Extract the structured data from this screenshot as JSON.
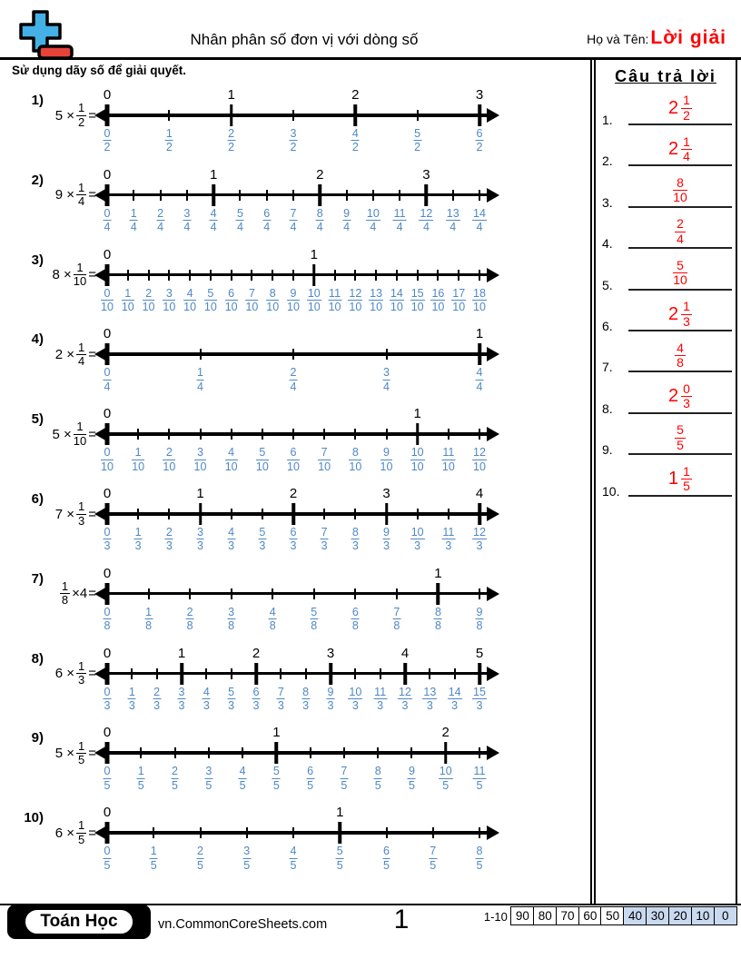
{
  "header": {
    "title": "Nhân phân số đơn vị với dòng số",
    "name_label": "Họ và Tên:",
    "name_value": "Lời giải",
    "instruction": "Sử dụng dãy số để giải quyết."
  },
  "colors": {
    "answer_red": "#fe0000",
    "fraction_blue": "#4e88c7",
    "logo_blue": "#45b0e5",
    "logo_red": "#e84339",
    "grade_highlight": "#c9daf0"
  },
  "problems": [
    {
      "label": "1)",
      "coef": "5",
      "num": "1",
      "den": 2,
      "frac_first": false,
      "max": 6
    },
    {
      "label": "2)",
      "coef": "9",
      "num": "1",
      "den": 4,
      "frac_first": false,
      "max": 14
    },
    {
      "label": "3)",
      "coef": "8",
      "num": "1",
      "den": 10,
      "frac_first": false,
      "max": 18
    },
    {
      "label": "4)",
      "coef": "2",
      "num": "1",
      "den": 4,
      "frac_first": false,
      "max": 4
    },
    {
      "label": "5)",
      "coef": "5",
      "num": "1",
      "den": 10,
      "frac_first": false,
      "max": 12
    },
    {
      "label": "6)",
      "coef": "7",
      "num": "1",
      "den": 3,
      "frac_first": false,
      "max": 12
    },
    {
      "label": "7)",
      "coef": "4",
      "num": "1",
      "den": 8,
      "frac_first": true,
      "max": 9
    },
    {
      "label": "8)",
      "coef": "6",
      "num": "1",
      "den": 3,
      "frac_first": false,
      "max": 15
    },
    {
      "label": "9)",
      "coef": "5",
      "num": "1",
      "den": 5,
      "frac_first": false,
      "max": 11
    },
    {
      "label": "10)",
      "coef": "6",
      "num": "1",
      "den": 5,
      "frac_first": false,
      "max": 8
    }
  ],
  "answers": {
    "title": "Câu trả lời",
    "items": [
      {
        "n": "1.",
        "whole": "2",
        "num": "1",
        "den": "2"
      },
      {
        "n": "2.",
        "whole": "2",
        "num": "1",
        "den": "4"
      },
      {
        "n": "3.",
        "whole": "",
        "num": "8",
        "den": "10"
      },
      {
        "n": "4.",
        "whole": "",
        "num": "2",
        "den": "4"
      },
      {
        "n": "5.",
        "whole": "",
        "num": "5",
        "den": "10"
      },
      {
        "n": "6.",
        "whole": "2",
        "num": "1",
        "den": "3"
      },
      {
        "n": "7.",
        "whole": "",
        "num": "4",
        "den": "8"
      },
      {
        "n": "8.",
        "whole": "2",
        "num": "0",
        "den": "3"
      },
      {
        "n": "9.",
        "whole": "",
        "num": "5",
        "den": "5"
      },
      {
        "n": "10.",
        "whole": "1",
        "num": "1",
        "den": "5"
      }
    ]
  },
  "footer": {
    "brand": "Toán Học",
    "site": "vn.CommonCoreSheets.com",
    "page": "1",
    "grade_label": "1-10",
    "grades": [
      "90",
      "80",
      "70",
      "60",
      "50",
      "40",
      "30",
      "20",
      "10",
      "0"
    ],
    "highlight_start_index": 5
  }
}
